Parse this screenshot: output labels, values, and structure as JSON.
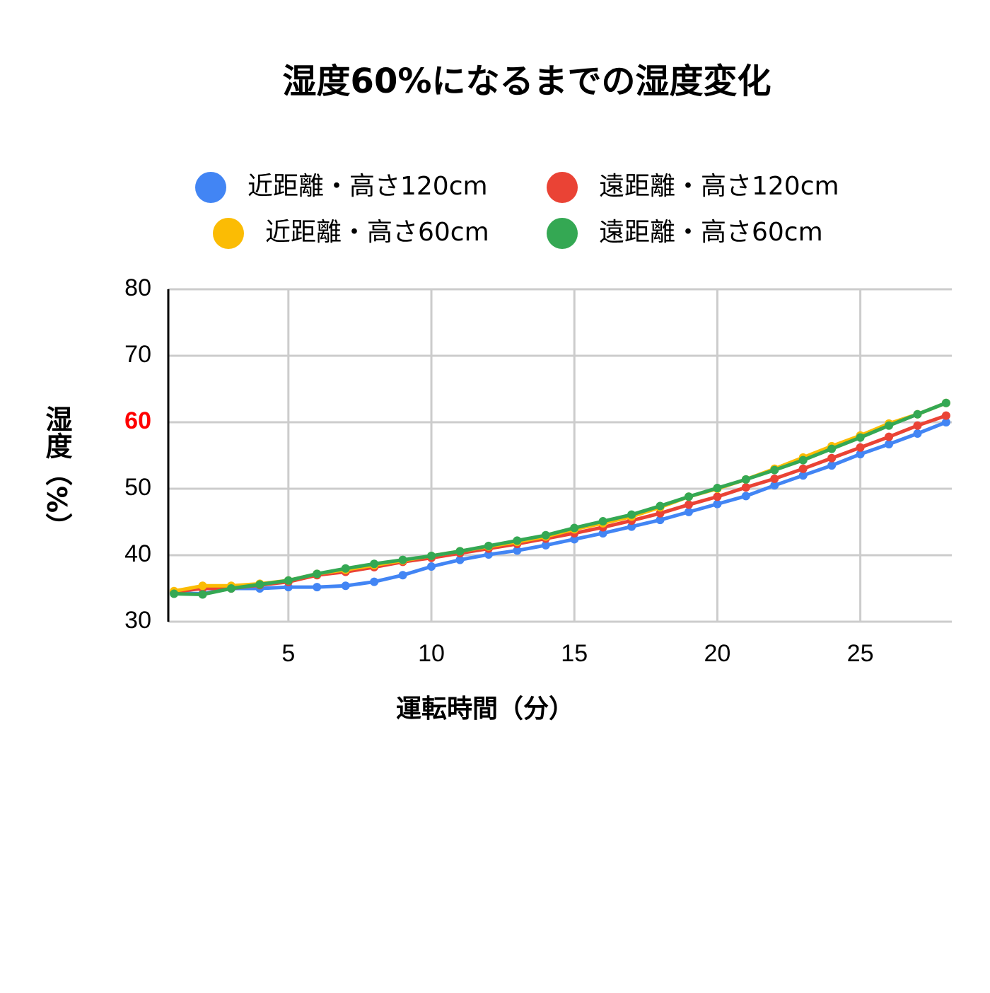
{
  "chart_data": {
    "type": "line",
    "title": "湿度60%になるまでの湿度変化",
    "x_label": "運転時間（分）",
    "y_label": "湿度（%）",
    "x": [
      1,
      2,
      3,
      4,
      5,
      6,
      7,
      8,
      9,
      10,
      11,
      12,
      13,
      14,
      15,
      16,
      17,
      18,
      19,
      20,
      21,
      22,
      23,
      24,
      25,
      26,
      27,
      28
    ],
    "series": [
      {
        "name": "近距離・高さ120cm",
        "color": "#4285f4",
        "values": [
          34.3,
          34.2,
          35.0,
          35.0,
          35.2,
          35.2,
          35.4,
          36.0,
          37.0,
          38.3,
          39.3,
          40.1,
          40.7,
          41.5,
          42.4,
          43.3,
          44.3,
          45.3,
          46.5,
          47.7,
          48.9,
          50.5,
          52.0,
          53.5,
          55.2,
          56.7,
          58.3,
          60.0
        ]
      },
      {
        "name": "遠距離・高さ120cm",
        "color": "#ea4335",
        "values": [
          34.5,
          35.0,
          35.0,
          35.5,
          36.0,
          37.0,
          37.5,
          38.2,
          39.0,
          39.6,
          40.3,
          41.0,
          41.7,
          42.5,
          43.3,
          44.2,
          45.2,
          46.3,
          47.6,
          48.8,
          50.2,
          51.5,
          53.0,
          54.6,
          56.2,
          57.8,
          59.5,
          61.0
        ]
      },
      {
        "name": "近距離・高さ60cm",
        "color": "#fbbc04",
        "values": [
          34.6,
          35.4,
          35.4,
          35.7,
          36.2,
          37.2,
          37.8,
          38.5,
          39.2,
          39.9,
          40.6,
          41.3,
          42.0,
          42.8,
          43.9,
          44.8,
          45.8,
          47.2,
          48.8,
          50.0,
          51.4,
          53.0,
          54.7,
          56.4,
          58.0,
          59.8,
          61.2,
          62.9
        ]
      },
      {
        "name": "遠距離・高さ60cm",
        "color": "#34a853",
        "values": [
          34.2,
          34.1,
          35.0,
          35.6,
          36.2,
          37.2,
          38.0,
          38.7,
          39.3,
          39.9,
          40.6,
          41.4,
          42.2,
          43.0,
          44.1,
          45.1,
          46.1,
          47.4,
          48.8,
          50.1,
          51.4,
          52.8,
          54.3,
          56.0,
          57.7,
          59.5,
          61.2,
          62.9
        ]
      }
    ],
    "xlim": [
      0.8,
      28.2
    ],
    "xticks": [
      5,
      10,
      15,
      20,
      25
    ],
    "ylim": [
      30,
      80
    ],
    "yticks": [
      30,
      40,
      50,
      60,
      70,
      80
    ],
    "highlight_ytick": 60,
    "highlight_color": "#ff0000",
    "grid": true
  }
}
